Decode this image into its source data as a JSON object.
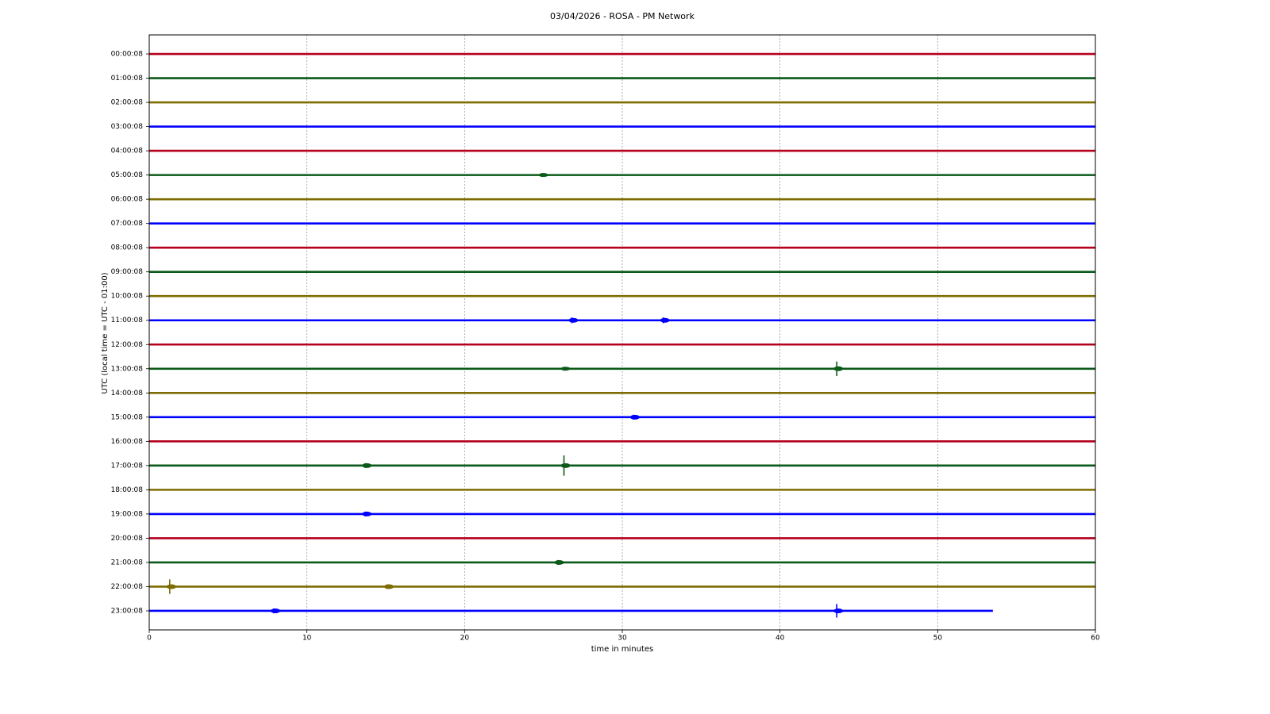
{
  "chart_data": {
    "type": "helicorder",
    "title": "03/04/2026 - ROSA - PM Network",
    "x_label": "time in minutes",
    "y_label": "UTC (local time = UTC - 01:00)",
    "xlim": [
      0,
      60
    ],
    "xticks": [
      0,
      10,
      20,
      30,
      40,
      50,
      60
    ],
    "grid": true,
    "rows": [
      {
        "label": "00:00:08",
        "color": "#b5001e",
        "xend": 60
      },
      {
        "label": "01:00:08",
        "color": "#0b5a1a",
        "xend": 60
      },
      {
        "label": "02:00:08",
        "color": "#7d6c00",
        "xend": 60
      },
      {
        "label": "03:00:08",
        "color": "#0000ff",
        "xend": 60
      },
      {
        "label": "04:00:08",
        "color": "#b5001e",
        "xend": 60
      },
      {
        "label": "05:00:08",
        "color": "#0b5a1a",
        "xend": 60
      },
      {
        "label": "06:00:08",
        "color": "#7d6c00",
        "xend": 60
      },
      {
        "label": "07:00:08",
        "color": "#0000ff",
        "xend": 60
      },
      {
        "label": "08:00:08",
        "color": "#b5001e",
        "xend": 60
      },
      {
        "label": "09:00:08",
        "color": "#0b5a1a",
        "xend": 60
      },
      {
        "label": "10:00:08",
        "color": "#7d6c00",
        "xend": 60
      },
      {
        "label": "11:00:08",
        "color": "#0000ff",
        "xend": 60
      },
      {
        "label": "12:00:08",
        "color": "#b5001e",
        "xend": 60
      },
      {
        "label": "13:00:08",
        "color": "#0b5a1a",
        "xend": 60
      },
      {
        "label": "14:00:08",
        "color": "#7d6c00",
        "xend": 60
      },
      {
        "label": "15:00:08",
        "color": "#0000ff",
        "xend": 60
      },
      {
        "label": "16:00:08",
        "color": "#b5001e",
        "xend": 60
      },
      {
        "label": "17:00:08",
        "color": "#0b5a1a",
        "xend": 60
      },
      {
        "label": "18:00:08",
        "color": "#7d6c00",
        "xend": 60
      },
      {
        "label": "19:00:08",
        "color": "#0000ff",
        "xend": 60
      },
      {
        "label": "20:00:08",
        "color": "#b5001e",
        "xend": 60
      },
      {
        "label": "21:00:08",
        "color": "#0b5a1a",
        "xend": 60
      },
      {
        "label": "22:00:08",
        "color": "#7d6c00",
        "xend": 60
      },
      {
        "label": "23:00:08",
        "color": "#0000ff",
        "xend": 53.5
      }
    ],
    "events": [
      {
        "row": 5,
        "x": 24.9,
        "amplitude": 0.08
      },
      {
        "row": 11,
        "x": 26.8,
        "amplitude": 0.12
      },
      {
        "row": 11,
        "x": 32.6,
        "amplitude": 0.12
      },
      {
        "row": 13,
        "x": 26.3,
        "amplitude": 0.08
      },
      {
        "row": 13,
        "x": 43.6,
        "amplitude": 0.3
      },
      {
        "row": 15,
        "x": 30.7,
        "amplitude": 0.1
      },
      {
        "row": 17,
        "x": 13.7,
        "amplitude": 0.1
      },
      {
        "row": 17,
        "x": 26.3,
        "amplitude": 0.42
      },
      {
        "row": 19,
        "x": 13.7,
        "amplitude": 0.1
      },
      {
        "row": 21,
        "x": 25.9,
        "amplitude": 0.1
      },
      {
        "row": 22,
        "x": 1.3,
        "amplitude": 0.3
      },
      {
        "row": 22,
        "x": 15.1,
        "amplitude": 0.1
      },
      {
        "row": 23,
        "x": 7.9,
        "amplitude": 0.1
      },
      {
        "row": 23,
        "x": 43.6,
        "amplitude": 0.28
      }
    ]
  }
}
